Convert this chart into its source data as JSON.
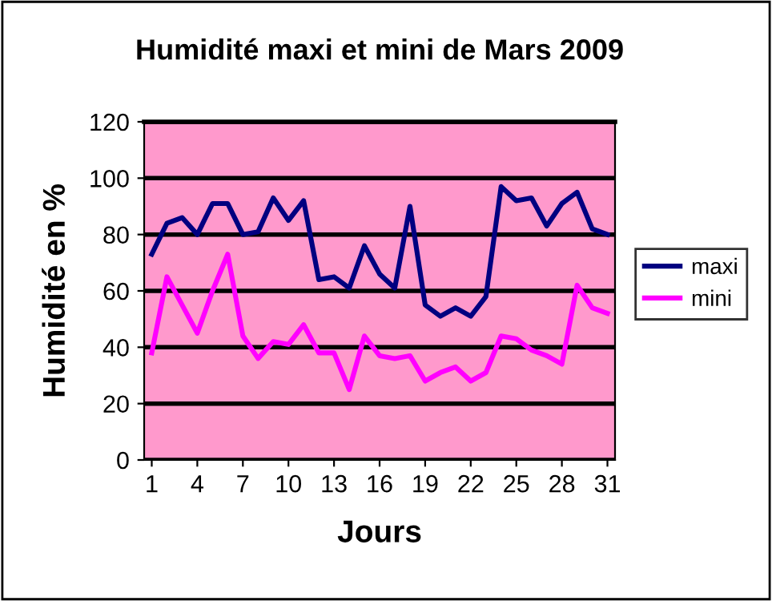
{
  "chart_data": {
    "type": "line",
    "title": "Humidité maxi et mini de Mars 2009",
    "xlabel": "Jours",
    "ylabel": "Humidité en %",
    "x": [
      1,
      2,
      3,
      4,
      5,
      6,
      7,
      8,
      9,
      10,
      11,
      12,
      13,
      14,
      15,
      16,
      17,
      18,
      19,
      20,
      21,
      22,
      23,
      24,
      25,
      26,
      27,
      28,
      29,
      30,
      31
    ],
    "series": [
      {
        "name": "maxi",
        "color": "#000080",
        "values": [
          73,
          84,
          86,
          80,
          91,
          91,
          80,
          81,
          93,
          85,
          92,
          64,
          65,
          61,
          76,
          66,
          61,
          90,
          55,
          51,
          54,
          51,
          58,
          97,
          92,
          93,
          83,
          91,
          95,
          82,
          80
        ]
      },
      {
        "name": "mini",
        "color": "#ff00ff",
        "values": [
          38,
          65,
          55,
          45,
          60,
          73,
          44,
          36,
          42,
          41,
          48,
          38,
          38,
          25,
          44,
          37,
          36,
          37,
          28,
          31,
          33,
          28,
          31,
          44,
          43,
          39,
          37,
          34,
          62,
          54,
          52
        ]
      }
    ],
    "xlim": [
      0.5,
      31.5
    ],
    "xticks": [
      1,
      4,
      7,
      10,
      13,
      16,
      19,
      22,
      25,
      28,
      31
    ],
    "ylim": [
      0,
      120
    ],
    "yticks": [
      0,
      20,
      40,
      60,
      80,
      100,
      120
    ],
    "grid": "y",
    "legend": "right",
    "marker": "none",
    "line_style": "solid"
  }
}
